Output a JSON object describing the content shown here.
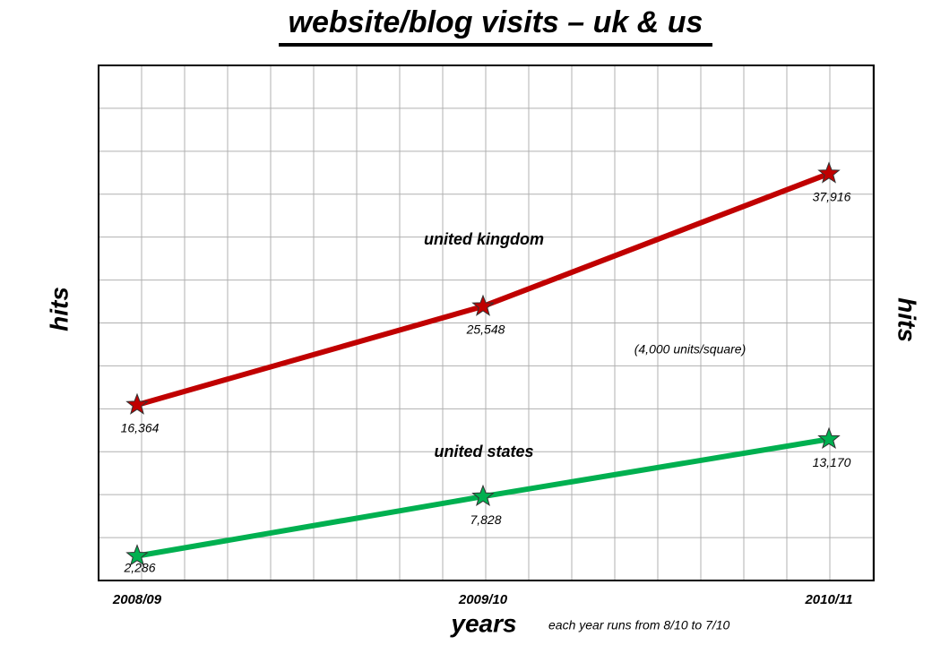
{
  "chart_data": {
    "type": "line",
    "title": "website/blog visits – uk & us",
    "x_label": "years",
    "y_label": "hits",
    "y2_label": "hits",
    "annotation": "(4,000 units/square)",
    "footnote": "each year runs from 8/10 to 7/10",
    "categories": [
      "2008/09",
      "2009/10",
      "2010/11"
    ],
    "series": [
      {
        "name": "united kingdom",
        "color": "#c00000",
        "values": [
          16364,
          25548,
          37916
        ],
        "value_labels": [
          "16,364",
          "25,548",
          "37,916"
        ]
      },
      {
        "name": "united states",
        "color": "#00b050",
        "values": [
          2286,
          7828,
          13170
        ],
        "value_labels": [
          "2,286",
          "7,828",
          "13,170"
        ]
      }
    ],
    "ylim": [
      0,
      48000
    ],
    "yticks": [
      0,
      4000,
      8000,
      12000,
      16000,
      20000,
      24000,
      28000,
      32000,
      36000,
      40000,
      44000,
      48000
    ],
    "grid": true
  }
}
